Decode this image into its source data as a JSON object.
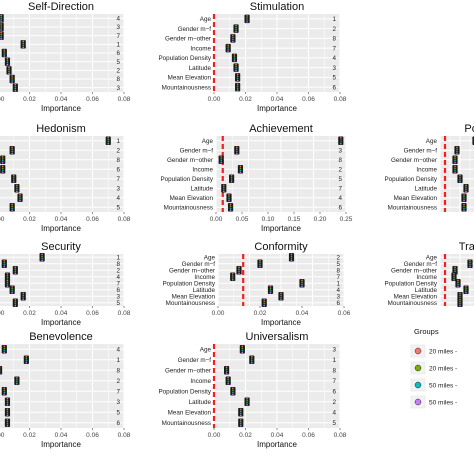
{
  "chart_data": [
    {
      "type": "scatter",
      "title": "Self-Direction",
      "xlabel": "Importance",
      "xlim": [
        0,
        0.08
      ],
      "xticks": [
        "0.00",
        "0.02",
        "0.04",
        "0.06",
        "0.08"
      ],
      "labels": [],
      "ranks": [
        "4",
        "3",
        "7",
        "1",
        "6",
        "5",
        "2",
        "8",
        "3"
      ],
      "values": [
        0.002,
        0.002,
        0.002,
        0.016,
        0.004,
        0.006,
        0.007,
        0.009,
        0.011
      ],
      "reference": 0.0
    },
    {
      "type": "scatter",
      "title": "Stimulation",
      "xlabel": "Importance",
      "xlim": [
        0,
        0.08
      ],
      "xticks": [
        "0.00",
        "0.02",
        "0.04",
        "0.06",
        "0.08"
      ],
      "labels": [
        "Age",
        "Gender m−f",
        "Gender m−other",
        "Income",
        "Population Density",
        "Latitude",
        "Mean Elevation",
        "Mountainousness"
      ],
      "ranks": [
        "1",
        "2",
        "8",
        "7",
        "4",
        "3",
        "5",
        "6"
      ],
      "values": [
        0.021,
        0.014,
        0.012,
        0.009,
        0.013,
        0.014,
        0.015,
        0.015
      ],
      "reference": 0.0
    },
    {
      "type": "scatter",
      "title": "Hedonism",
      "xlabel": "Importance",
      "xlim": [
        0,
        0.08
      ],
      "xticks": [
        "0.00",
        "0.02",
        "0.04",
        "0.06",
        "0.08"
      ],
      "labels": [],
      "ranks": [
        "1",
        "2",
        "8",
        "6",
        "7",
        "3",
        "4",
        "5"
      ],
      "values": [
        0.07,
        0.009,
        0.003,
        0.003,
        0.01,
        0.012,
        0.014,
        0.009
      ],
      "reference": 0.0
    },
    {
      "type": "scatter",
      "title": "Achievement",
      "xlabel": "Importance",
      "xlim": [
        0,
        0.25
      ],
      "xticks": [
        "0.00",
        "0.05",
        "0.10",
        "0.15",
        "0.20",
        "0.25"
      ],
      "labels": [
        "Age",
        "Gender m−f",
        "Gender m−other",
        "Income",
        "Population Density",
        "Latitude",
        "Mean Elevation",
        "Mountainousness"
      ],
      "ranks": [
        "1",
        "3",
        "8",
        "2",
        "5",
        "7",
        "4",
        "6"
      ],
      "values": [
        0.24,
        0.04,
        0.01,
        0.047,
        0.03,
        0.015,
        0.025,
        0.028
      ],
      "reference": 0.013
    },
    {
      "type": "scatter",
      "title": "Power",
      "xlabel": "",
      "xlim": [
        0,
        0.08
      ],
      "xticks": [],
      "labels": [
        "Age",
        "Gender m−f",
        "Gender m−other",
        "Income",
        "Population Density",
        "Latitude",
        "Mean Elevation",
        "Mountainousness"
      ],
      "ranks": [],
      "values": [
        0.035,
        0.017,
        0.015,
        0.015,
        0.02,
        0.026,
        0.024,
        0.024
      ],
      "reference": 0.005
    },
    {
      "type": "scatter",
      "title": "Security",
      "xlabel": "Importance",
      "xlim": [
        0,
        0.08
      ],
      "xticks": [
        "0.00",
        "0.02",
        "0.04",
        "0.06",
        "0.08"
      ],
      "labels": [],
      "ranks": [
        "1",
        "8",
        "2",
        "4",
        "7",
        "6",
        "3",
        "5"
      ],
      "values": [
        0.028,
        0.004,
        0.011,
        0.006,
        0.006,
        0.009,
        0.016,
        0.011
      ],
      "reference": 0.0
    },
    {
      "type": "scatter",
      "title": "Conformity",
      "xlabel": "Importance",
      "xlim": [
        0,
        0.06
      ],
      "xticks": [
        "0.00",
        "0.02",
        "0.04",
        "0.06"
      ],
      "labels": [
        "Age",
        "Gender m−f",
        "Gender m−other",
        "Income",
        "Population Density",
        "Latitude",
        "Mean Elevation",
        "Mountainousness"
      ],
      "ranks": [
        "2",
        "5",
        "8",
        "7",
        "1",
        "4",
        "3",
        "6"
      ],
      "values": [
        0.035,
        0.02,
        0.01,
        0.007,
        0.04,
        0.025,
        0.03,
        0.022
      ],
      "reference": 0.012
    },
    {
      "type": "scatter",
      "title": "Tradition",
      "xlabel": "",
      "xlim": [
        0,
        0.08
      ],
      "xticks": [],
      "labels": [
        "Age",
        "Gender m−f",
        "Gender m−other",
        "Income",
        "Population Density",
        "Latitude",
        "Mean Elevation",
        "Mountainousness"
      ],
      "ranks": [],
      "values": [
        0.04,
        0.03,
        0.015,
        0.014,
        0.018,
        0.026,
        0.02,
        0.02
      ],
      "reference": 0.005
    },
    {
      "type": "scatter",
      "title": "Benevolence",
      "xlabel": "Importance",
      "xlim": [
        0,
        0.08
      ],
      "xticks": [
        "0.00",
        "0.02",
        "0.04",
        "0.06",
        "0.08"
      ],
      "labels": [],
      "ranks": [
        "4",
        "1",
        "8",
        "2",
        "7",
        "3",
        "5",
        "6"
      ],
      "values": [
        0.004,
        0.018,
        0.001,
        0.012,
        0.004,
        0.006,
        0.006,
        0.006
      ],
      "reference": 0.0
    },
    {
      "type": "scatter",
      "title": "Universalism",
      "xlabel": "Importance",
      "xlim": [
        0,
        0.08
      ],
      "xticks": [
        "0.00",
        "0.02",
        "0.04",
        "0.06",
        "0.08"
      ],
      "labels": [
        "Age",
        "Gender m−f",
        "Gender m−other",
        "Income",
        "Population Density",
        "Latitude",
        "Mean Elevation",
        "Mountainousness"
      ],
      "ranks": [
        "3",
        "1",
        "8",
        "7",
        "6",
        "2",
        "4",
        "5"
      ],
      "values": [
        0.018,
        0.024,
        0.008,
        0.009,
        0.012,
        0.021,
        0.017,
        0.017
      ],
      "reference": 0.0
    }
  ],
  "legend": {
    "title": "Groups",
    "items": [
      {
        "label": "20 miles -",
        "color": "#f8766d"
      },
      {
        "label": "20 miles -",
        "color": "#7cae00"
      },
      {
        "label": "50 miles -",
        "color": "#00bfc4"
      },
      {
        "label": "50 miles -",
        "color": "#c77cff"
      }
    ]
  }
}
